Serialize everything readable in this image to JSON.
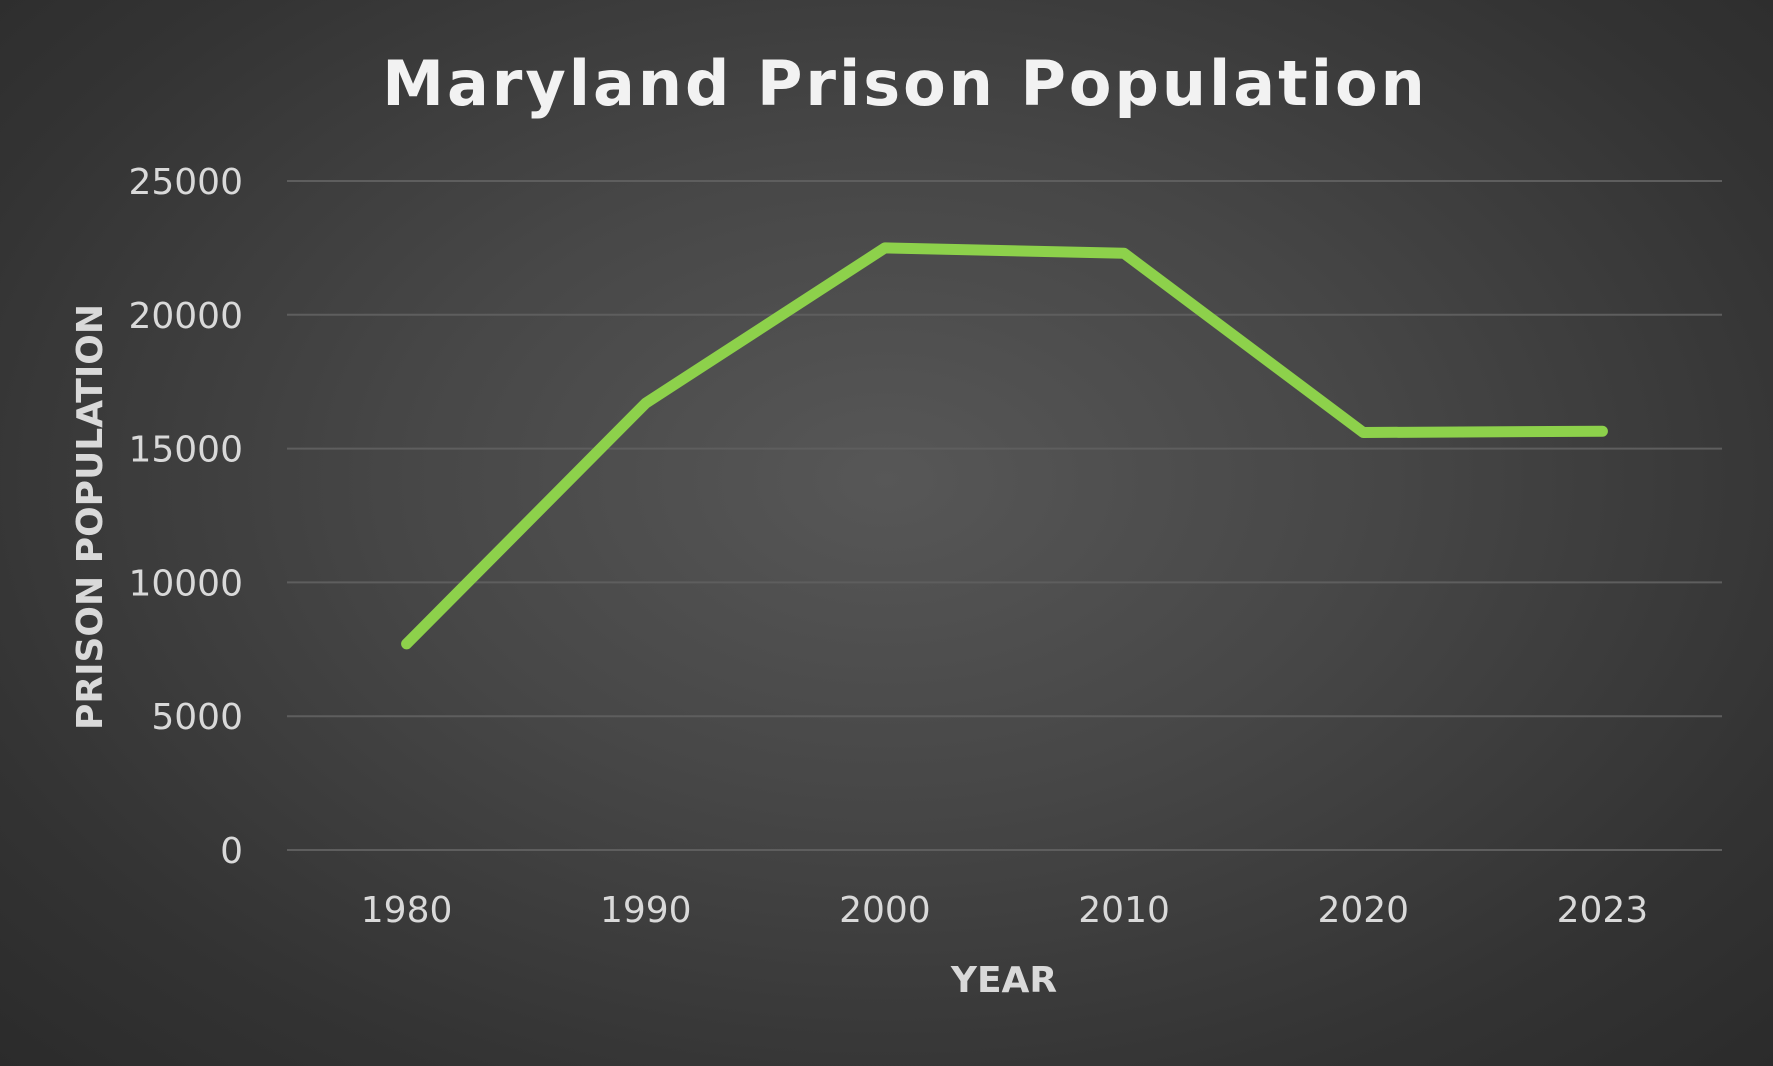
{
  "chart_data": {
    "type": "line",
    "title": "Maryland Prison Population",
    "xlabel": "YEAR",
    "ylabel": "PRISON POPULATION",
    "categories": [
      "1980",
      "1990",
      "2000",
      "2010",
      "2020",
      "2023"
    ],
    "series": [
      {
        "values": [
          7700,
          16700,
          22500,
          22300,
          15600,
          15650
        ],
        "color": "#8dd14b"
      }
    ],
    "ylim": [
      0,
      25000
    ],
    "yticks": [
      "0",
      "5000",
      "10000",
      "15000",
      "20000",
      "25000"
    ],
    "grid": true,
    "legend": "none"
  }
}
